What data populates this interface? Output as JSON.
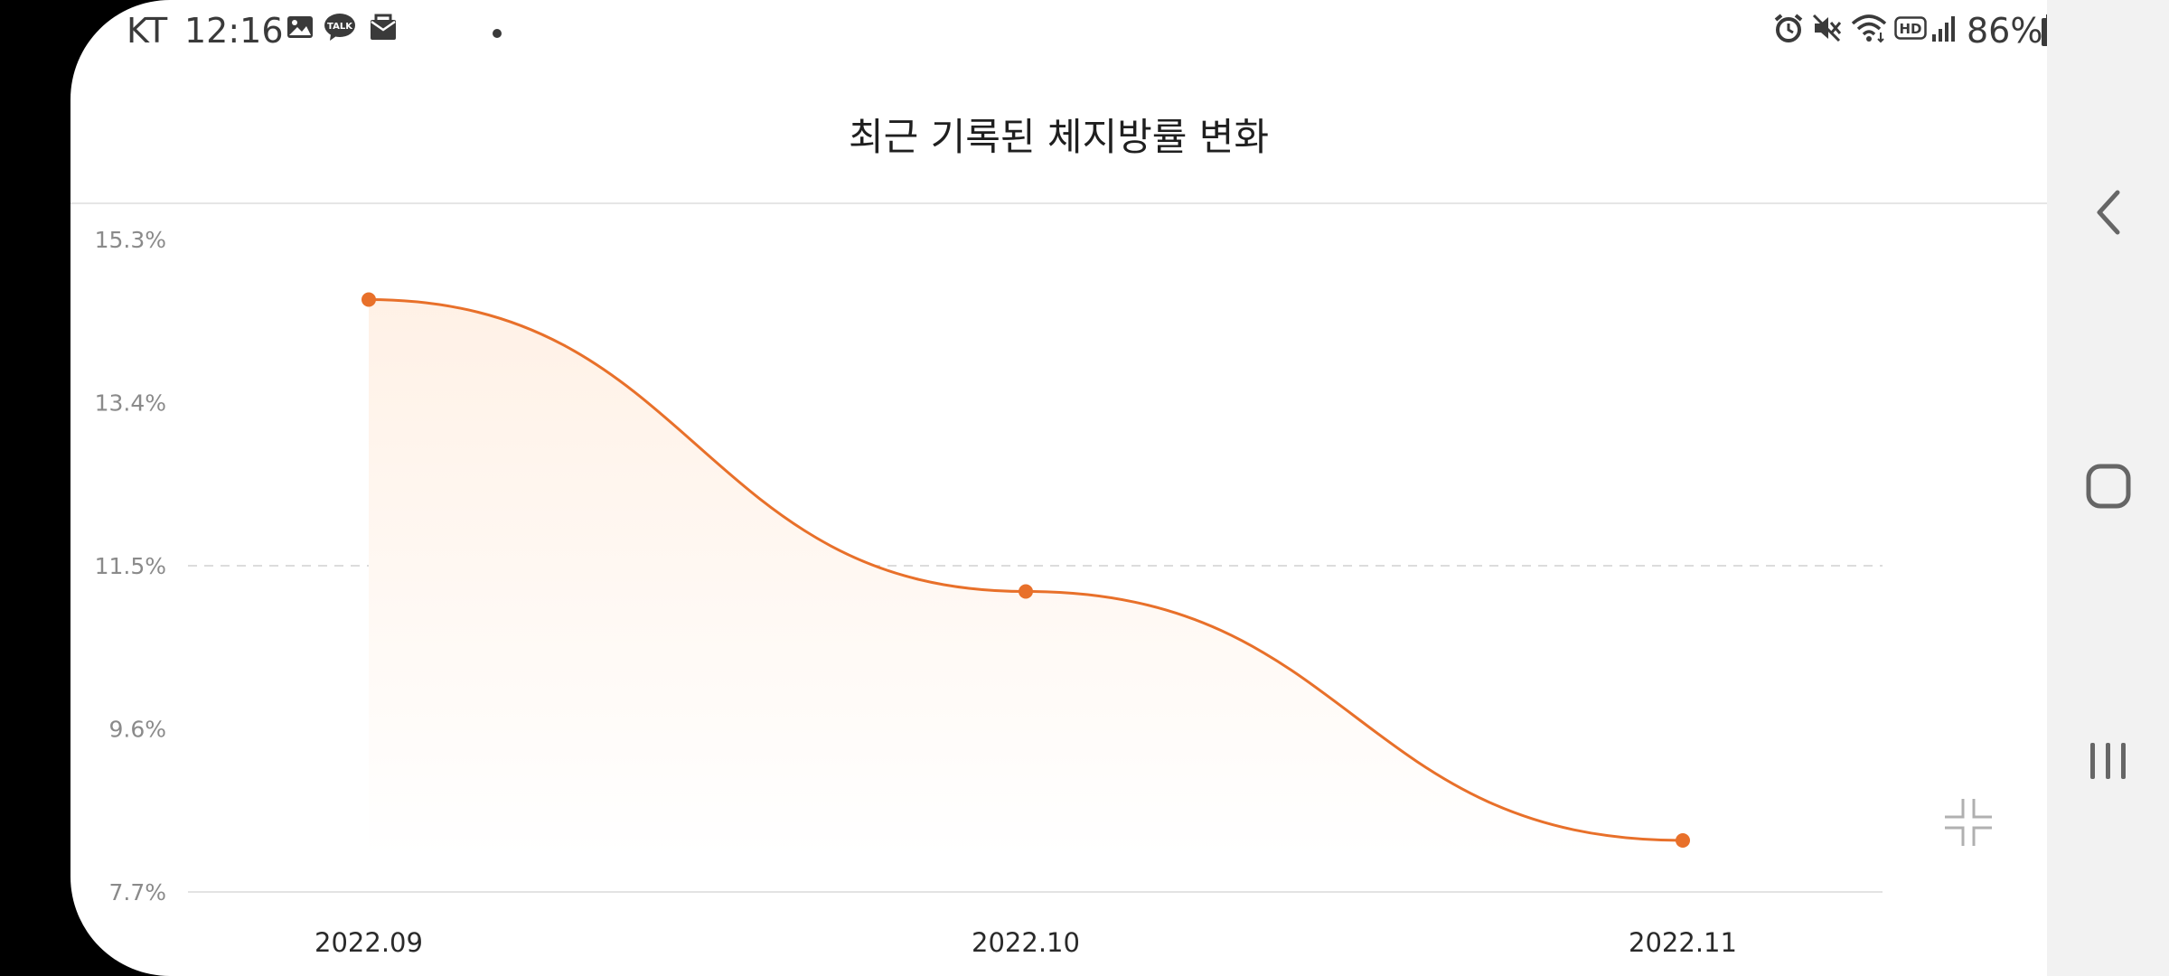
{
  "status_bar": {
    "carrier": "KT",
    "time": "12:16",
    "battery": "86%",
    "left_icons": [
      "gallery-icon",
      "kakaotalk-icon",
      "mail-icon",
      "dot-icon"
    ],
    "right_icons": [
      "alarm-icon",
      "mute-icon",
      "wifi-icon",
      "hd-icon",
      "signal-icon",
      "battery-icon"
    ],
    "talk_badge": "TALK"
  },
  "header": {
    "title": "최근 기록된 체지방률 변화"
  },
  "colors": {
    "accent": "#e8702a",
    "fill_top": "#fff1e6",
    "grid": "#e3e3e3"
  },
  "chart_data": {
    "type": "area",
    "categories": [
      "2022.09",
      "2022.10",
      "2022.11"
    ],
    "series": [
      {
        "values": [
          14.6,
          11.2,
          8.3
        ]
      }
    ],
    "yticks": [
      "15.3%",
      "13.4%",
      "11.5%",
      "9.6%",
      "7.7%"
    ],
    "ylim": [
      7.7,
      15.3
    ],
    "reference_line": 11.5,
    "smooth": true,
    "grid": false
  },
  "controls": {
    "collapse_icon": "collapse-icon"
  },
  "navigation": {
    "back": "back-icon",
    "home": "home-icon",
    "recents": "recents-icon"
  }
}
